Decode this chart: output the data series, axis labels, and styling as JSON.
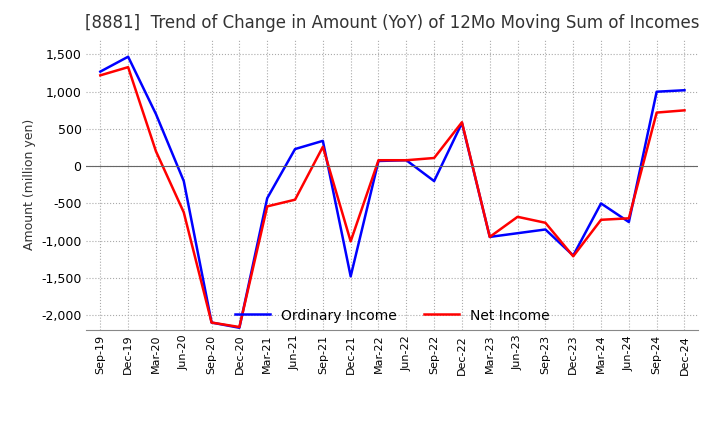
{
  "title": "[8881]  Trend of Change in Amount (YoY) of 12Mo Moving Sum of Incomes",
  "ylabel": "Amount (million yen)",
  "ylim": [
    -2200,
    1700
  ],
  "yticks": [
    -2000,
    -1500,
    -1000,
    -500,
    0,
    500,
    1000,
    1500
  ],
  "x_labels": [
    "Sep-19",
    "Dec-19",
    "Mar-20",
    "Jun-20",
    "Sep-20",
    "Dec-20",
    "Mar-21",
    "Jun-21",
    "Sep-21",
    "Dec-21",
    "Mar-22",
    "Jun-22",
    "Sep-22",
    "Dec-22",
    "Mar-23",
    "Jun-23",
    "Sep-23",
    "Dec-23",
    "Mar-24",
    "Jun-24",
    "Sep-24",
    "Dec-24"
  ],
  "ordinary_income": [
    1270,
    1470,
    700,
    -200,
    -2100,
    -2170,
    -430,
    230,
    340,
    -1480,
    70,
    80,
    -200,
    580,
    -950,
    -900,
    -850,
    -1200,
    -500,
    -750,
    1000,
    1020
  ],
  "net_income": [
    1220,
    1330,
    200,
    -620,
    -2100,
    -2160,
    -540,
    -450,
    260,
    -1010,
    80,
    80,
    110,
    590,
    -950,
    -680,
    -760,
    -1210,
    -720,
    -700,
    720,
    750
  ],
  "ordinary_color": "#0000ff",
  "net_color": "#ff0000",
  "background_color": "#ffffff",
  "grid_color": "#aaaaaa",
  "title_color": "#333333",
  "title_fontsize": 12,
  "legend_labels": [
    "Ordinary Income",
    "Net Income"
  ]
}
